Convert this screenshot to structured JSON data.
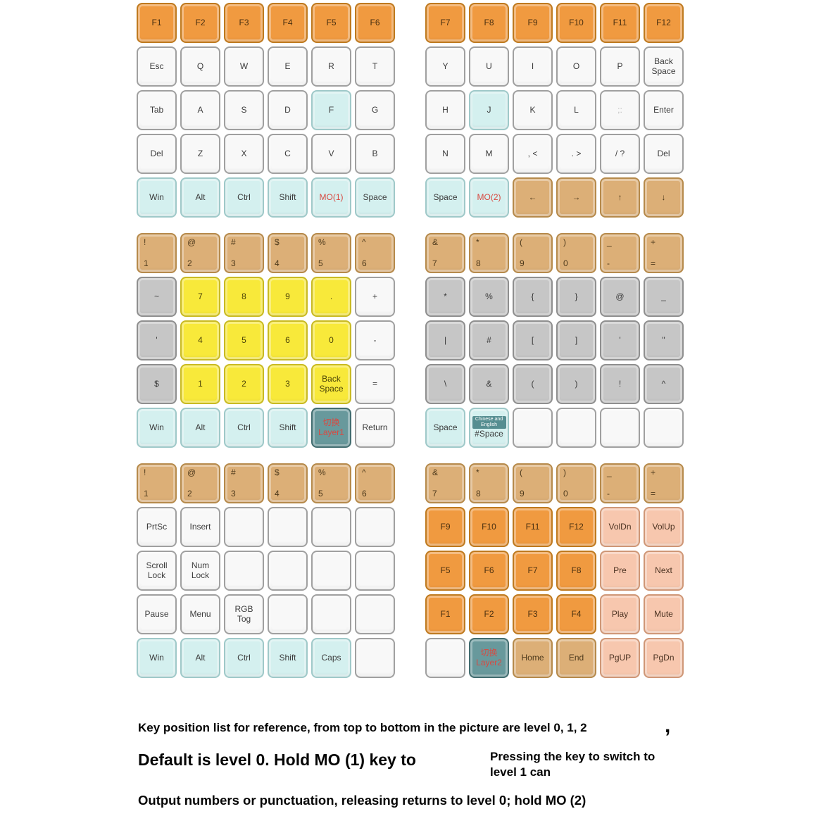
{
  "caption": {
    "line1": "Key position list for reference, from top to bottom in the picture are level 0, 1, 2",
    "comma": ",",
    "line2": "Default is level 0. Hold MO (1) key to",
    "line2_side": "Pressing the key to switch to level 1 can",
    "line3": "Output numbers or punctuation, releasing returns to level 0; hold MO (2)"
  },
  "colors": {
    "orange": "#f09a40",
    "tan": "#dcaf77",
    "yellow": "#f8e93a",
    "cyan": "#d4f0ef",
    "gray": "#c6c6c6",
    "salmon": "#f7c7ae",
    "teal": "#68999c",
    "white_key": "#f8f8f8",
    "red_text": "#d84a42"
  },
  "layers": [
    {
      "level": 0,
      "left": {
        "rows": [
          [
            {
              "t": "F1",
              "c": "orange"
            },
            {
              "t": "F2",
              "c": "orange"
            },
            {
              "t": "F3",
              "c": "orange"
            },
            {
              "t": "F4",
              "c": "orange"
            },
            {
              "t": "F5",
              "c": "orange"
            },
            {
              "t": "F6",
              "c": "orange"
            }
          ],
          [
            {
              "t": "Esc",
              "c": "white"
            },
            {
              "t": "Q",
              "c": "white"
            },
            {
              "t": "W",
              "c": "white"
            },
            {
              "t": "E",
              "c": "white"
            },
            {
              "t": "R",
              "c": "white"
            },
            {
              "t": "T",
              "c": "white"
            }
          ],
          [
            {
              "t": "Tab",
              "c": "white"
            },
            {
              "t": "A",
              "c": "white"
            },
            {
              "t": "S",
              "c": "white"
            },
            {
              "t": "D",
              "c": "white"
            },
            {
              "t": "F",
              "c": "cyan"
            },
            {
              "t": "G",
              "c": "white"
            }
          ],
          [
            {
              "t": "Del",
              "c": "white"
            },
            {
              "t": "Z",
              "c": "white"
            },
            {
              "t": "X",
              "c": "white"
            },
            {
              "t": "C",
              "c": "white"
            },
            {
              "t": "V",
              "c": "white"
            },
            {
              "t": "B",
              "c": "white"
            }
          ],
          [
            {
              "t": "Win",
              "c": "cyan"
            },
            {
              "t": "Alt",
              "c": "cyan"
            },
            {
              "t": "Ctrl",
              "c": "cyan"
            },
            {
              "t": "Shift",
              "c": "cyan"
            },
            {
              "t": "MO(1)",
              "c": "cyan",
              "tc": "red"
            },
            {
              "t": "Space",
              "c": "cyan"
            }
          ]
        ]
      },
      "right": {
        "rows": [
          [
            {
              "t": "F7",
              "c": "orange"
            },
            {
              "t": "F8",
              "c": "orange"
            },
            {
              "t": "F9",
              "c": "orange"
            },
            {
              "t": "F10",
              "c": "orange"
            },
            {
              "t": "F11",
              "c": "orange"
            },
            {
              "t": "F12",
              "c": "orange"
            }
          ],
          [
            {
              "t": "Y",
              "c": "white"
            },
            {
              "t": "U",
              "c": "white"
            },
            {
              "t": "I",
              "c": "white"
            },
            {
              "t": "O",
              "c": "white"
            },
            {
              "t": "P",
              "c": "white"
            },
            {
              "t": "Back\nSpace",
              "c": "white"
            }
          ],
          [
            {
              "t": "H",
              "c": "white"
            },
            {
              "t": "J",
              "c": "cyan"
            },
            {
              "t": "K",
              "c": "white"
            },
            {
              "t": "L",
              "c": "white"
            },
            {
              "t": ";:",
              "c": "white",
              "tc": "faint"
            },
            {
              "t": "Enter",
              "c": "white"
            }
          ],
          [
            {
              "t": "N",
              "c": "white"
            },
            {
              "t": "M",
              "c": "white"
            },
            {
              "t": ", <",
              "c": "white"
            },
            {
              "t": ". >",
              "c": "white"
            },
            {
              "t": "/ ?",
              "c": "white"
            },
            {
              "t": "Del",
              "c": "white"
            }
          ],
          [
            {
              "t": "Space",
              "c": "cyan"
            },
            {
              "t": "MO(2)",
              "c": "cyan",
              "tc": "red"
            },
            {
              "t": "←",
              "c": "tan"
            },
            {
              "t": "→",
              "c": "tan"
            },
            {
              "t": "↑",
              "c": "tan"
            },
            {
              "t": "↓",
              "c": "tan"
            }
          ]
        ]
      }
    },
    {
      "level": 1,
      "left": {
        "rows": [
          [
            {
              "t": "!\n1",
              "c": "tan",
              "pair": true
            },
            {
              "t": "@\n2",
              "c": "tan",
              "pair": true
            },
            {
              "t": "#\n3",
              "c": "tan",
              "pair": true
            },
            {
              "t": "$\n4",
              "c": "tan",
              "pair": true
            },
            {
              "t": "%\n5",
              "c": "tan",
              "pair": true
            },
            {
              "t": "^\n6",
              "c": "tan",
              "pair": true
            }
          ],
          [
            {
              "t": "~",
              "c": "gray"
            },
            {
              "t": "7",
              "c": "yellow"
            },
            {
              "t": "8",
              "c": "yellow"
            },
            {
              "t": "9",
              "c": "yellow"
            },
            {
              "t": ".",
              "c": "yellow"
            },
            {
              "t": "+",
              "c": "white"
            }
          ],
          [
            {
              "t": "'",
              "c": "gray"
            },
            {
              "t": "4",
              "c": "yellow"
            },
            {
              "t": "5",
              "c": "yellow"
            },
            {
              "t": "6",
              "c": "yellow"
            },
            {
              "t": "0",
              "c": "yellow"
            },
            {
              "t": "-",
              "c": "white"
            }
          ],
          [
            {
              "t": "$",
              "c": "gray"
            },
            {
              "t": "1",
              "c": "yellow"
            },
            {
              "t": "2",
              "c": "yellow"
            },
            {
              "t": "3",
              "c": "yellow"
            },
            {
              "t": "Back\nSpace",
              "c": "yellow"
            },
            {
              "t": "=",
              "c": "white"
            }
          ],
          [
            {
              "t": "Win",
              "c": "cyan"
            },
            {
              "t": "Alt",
              "c": "cyan"
            },
            {
              "t": "Ctrl",
              "c": "cyan"
            },
            {
              "t": "Shift",
              "c": "cyan"
            },
            {
              "t": "切换\nLayer1",
              "c": "teal",
              "tc": "red"
            },
            {
              "t": "Return",
              "c": "white"
            }
          ]
        ]
      },
      "right": {
        "rows": [
          [
            {
              "t": "&\n7",
              "c": "tan",
              "pair": true
            },
            {
              "t": "*\n8",
              "c": "tan",
              "pair": true
            },
            {
              "t": "(\n9",
              "c": "tan",
              "pair": true
            },
            {
              "t": ")\n0",
              "c": "tan",
              "pair": true
            },
            {
              "t": "_\n-",
              "c": "tan",
              "pair": true
            },
            {
              "t": "+\n=",
              "c": "tan",
              "pair": true
            }
          ],
          [
            {
              "t": "*",
              "c": "gray"
            },
            {
              "t": "%",
              "c": "gray"
            },
            {
              "t": "{",
              "c": "gray"
            },
            {
              "t": "}",
              "c": "gray"
            },
            {
              "t": "@",
              "c": "gray"
            },
            {
              "t": "_",
              "c": "gray"
            }
          ],
          [
            {
              "t": "|",
              "c": "gray"
            },
            {
              "t": "#",
              "c": "gray"
            },
            {
              "t": "[",
              "c": "gray"
            },
            {
              "t": "]",
              "c": "gray"
            },
            {
              "t": "'",
              "c": "gray"
            },
            {
              "t": "\"",
              "c": "gray"
            }
          ],
          [
            {
              "t": "\\",
              "c": "gray"
            },
            {
              "t": "&",
              "c": "gray"
            },
            {
              "t": "(",
              "c": "gray"
            },
            {
              "t": ")",
              "c": "gray"
            },
            {
              "t": "!",
              "c": "gray"
            },
            {
              "t": "^",
              "c": "gray"
            }
          ],
          [
            {
              "t": "Space",
              "c": "cyan"
            },
            {
              "t": "#Space",
              "c": "cyan",
              "small": "Chinese and English"
            },
            {
              "t": "",
              "c": "white"
            },
            {
              "t": "",
              "c": "white"
            },
            {
              "t": "",
              "c": "white"
            },
            {
              "t": "",
              "c": "white"
            }
          ]
        ]
      }
    },
    {
      "level": 2,
      "left": {
        "rows": [
          [
            {
              "t": "!\n1",
              "c": "tan",
              "pair": true
            },
            {
              "t": "@\n2",
              "c": "tan",
              "pair": true
            },
            {
              "t": "#\n3",
              "c": "tan",
              "pair": true
            },
            {
              "t": "$\n4",
              "c": "tan",
              "pair": true
            },
            {
              "t": "%\n5",
              "c": "tan",
              "pair": true
            },
            {
              "t": "^\n6",
              "c": "tan",
              "pair": true
            }
          ],
          [
            {
              "t": "PrtSc",
              "c": "white"
            },
            {
              "t": "Insert",
              "c": "white"
            },
            {
              "t": "",
              "c": "white"
            },
            {
              "t": "",
              "c": "white"
            },
            {
              "t": "",
              "c": "white"
            },
            {
              "t": "",
              "c": "white"
            }
          ],
          [
            {
              "t": "Scroll\nLock",
              "c": "white"
            },
            {
              "t": "Num\nLock",
              "c": "white"
            },
            {
              "t": "",
              "c": "white"
            },
            {
              "t": "",
              "c": "white"
            },
            {
              "t": "",
              "c": "white"
            },
            {
              "t": "",
              "c": "white"
            }
          ],
          [
            {
              "t": "Pause",
              "c": "white"
            },
            {
              "t": "Menu",
              "c": "white"
            },
            {
              "t": "RGB\nTog",
              "c": "white"
            },
            {
              "t": "",
              "c": "white"
            },
            {
              "t": "",
              "c": "white"
            },
            {
              "t": "",
              "c": "white"
            }
          ],
          [
            {
              "t": "Win",
              "c": "cyan"
            },
            {
              "t": "Alt",
              "c": "cyan"
            },
            {
              "t": "Ctrl",
              "c": "cyan"
            },
            {
              "t": "Shift",
              "c": "cyan"
            },
            {
              "t": "Caps",
              "c": "cyan"
            },
            {
              "t": "",
              "c": "white"
            }
          ]
        ]
      },
      "right": {
        "rows": [
          [
            {
              "t": "&\n7",
              "c": "tan",
              "pair": true
            },
            {
              "t": "*\n8",
              "c": "tan",
              "pair": true
            },
            {
              "t": "(\n9",
              "c": "tan",
              "pair": true
            },
            {
              "t": ")\n0",
              "c": "tan",
              "pair": true
            },
            {
              "t": "_\n-",
              "c": "tan",
              "pair": true
            },
            {
              "t": "+\n=",
              "c": "tan",
              "pair": true
            }
          ],
          [
            {
              "t": "F9",
              "c": "orange"
            },
            {
              "t": "F10",
              "c": "orange"
            },
            {
              "t": "F11",
              "c": "orange"
            },
            {
              "t": "F12",
              "c": "orange"
            },
            {
              "t": "VolDn",
              "c": "salmon"
            },
            {
              "t": "VolUp",
              "c": "salmon"
            }
          ],
          [
            {
              "t": "F5",
              "c": "orange"
            },
            {
              "t": "F6",
              "c": "orange"
            },
            {
              "t": "F7",
              "c": "orange"
            },
            {
              "t": "F8",
              "c": "orange"
            },
            {
              "t": "Pre",
              "c": "salmon"
            },
            {
              "t": "Next",
              "c": "salmon"
            }
          ],
          [
            {
              "t": "F1",
              "c": "orange"
            },
            {
              "t": "F2",
              "c": "orange"
            },
            {
              "t": "F3",
              "c": "orange"
            },
            {
              "t": "F4",
              "c": "orange"
            },
            {
              "t": "Play",
              "c": "salmon"
            },
            {
              "t": "Mute",
              "c": "salmon"
            }
          ],
          [
            {
              "t": "",
              "c": "white"
            },
            {
              "t": "切换\nLayer2",
              "c": "teal",
              "tc": "red"
            },
            {
              "t": "Home",
              "c": "tan"
            },
            {
              "t": "End",
              "c": "tan"
            },
            {
              "t": "PgUP",
              "c": "salmon"
            },
            {
              "t": "PgDn",
              "c": "salmon"
            }
          ]
        ]
      }
    }
  ]
}
